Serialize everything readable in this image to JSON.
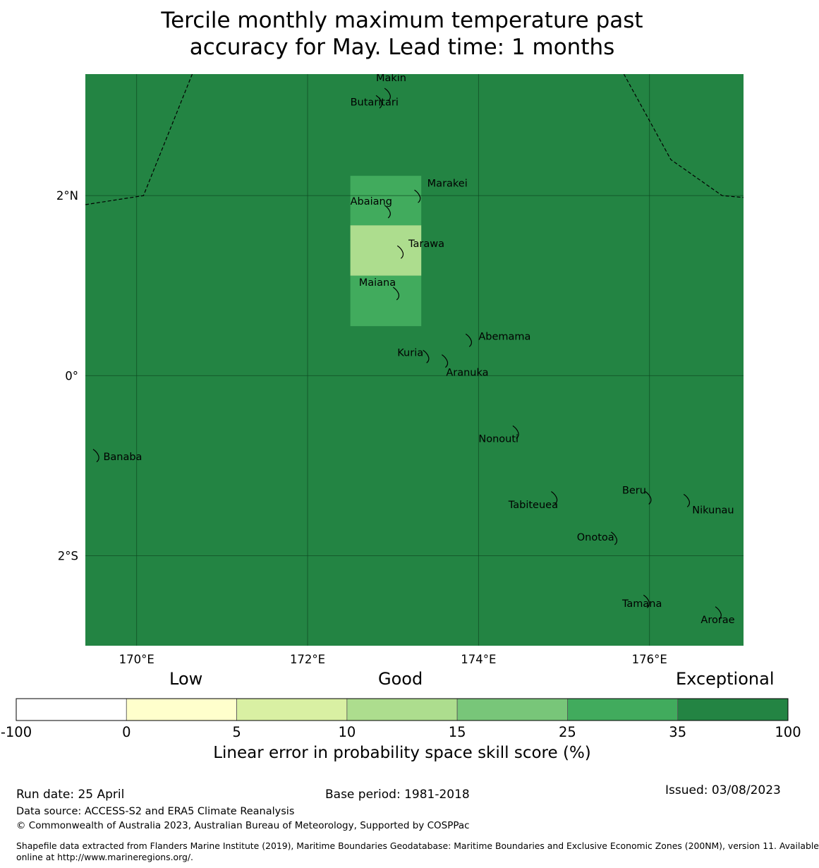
{
  "title_line1": "Tercile monthly maximum temperature past",
  "title_line2": "accuracy for May. Lead time: 1 months",
  "map": {
    "lon_range": [
      169.4,
      177.1
    ],
    "lat_range": [
      -3.0,
      3.35
    ],
    "background_category_color": "#238443",
    "lat_ticks": [
      {
        "lat": 2,
        "label": "2°N"
      },
      {
        "lat": 0,
        "label": "0°"
      },
      {
        "lat": -2,
        "label": "2°S"
      }
    ],
    "lon_ticks": [
      {
        "lon": 170,
        "label": "170°E"
      },
      {
        "lon": 172,
        "label": "172°E"
      },
      {
        "lon": 174,
        "label": "174°E"
      },
      {
        "lon": 176,
        "label": "176°E"
      }
    ],
    "cells": [
      {
        "lon0": 172.5,
        "lon1": 173.33,
        "lat0": 1.67,
        "lat1": 2.22,
        "color": "#41ab5d"
      },
      {
        "lon0": 172.5,
        "lon1": 173.33,
        "lat0": 1.11,
        "lat1": 1.67,
        "color": "#addd8e"
      },
      {
        "lon0": 172.5,
        "lon1": 173.33,
        "lat0": 0.55,
        "lat1": 1.11,
        "color": "#41ab5d"
      }
    ],
    "boundary_west": [
      [
        169.4,
        1.9
      ],
      [
        170.08,
        2.0
      ],
      [
        170.65,
        3.35
      ]
    ],
    "boundary_east": [
      [
        175.7,
        3.35
      ],
      [
        176.25,
        2.4
      ],
      [
        176.85,
        2.0
      ],
      [
        177.1,
        1.98
      ]
    ],
    "islands": [
      {
        "name": "Makin",
        "lon": 172.95,
        "lat": 3.13,
        "label_dlon": -0.15,
        "label_dlat": 0.14
      },
      {
        "name": "Butaritari",
        "lon": 172.85,
        "lat": 3.05,
        "label_dlon": -0.35,
        "label_dlat": -0.05
      },
      {
        "name": "Marakei",
        "lon": 173.3,
        "lat": 2.0,
        "label_dlon": 0.1,
        "label_dlat": 0.1
      },
      {
        "name": "Abaiang",
        "lon": 172.95,
        "lat": 1.83,
        "label_dlon": -0.45,
        "label_dlat": 0.07
      },
      {
        "name": "Tarawa",
        "lon": 173.1,
        "lat": 1.38,
        "label_dlon": 0.08,
        "label_dlat": 0.05
      },
      {
        "name": "Maiana",
        "lon": 173.05,
        "lat": 0.92,
        "label_dlon": -0.45,
        "label_dlat": 0.08
      },
      {
        "name": "Abemama",
        "lon": 173.9,
        "lat": 0.4,
        "label_dlon": 0.1,
        "label_dlat": 0.0
      },
      {
        "name": "Kuria",
        "lon": 173.4,
        "lat": 0.22,
        "label_dlon": -0.35,
        "label_dlat": 0.0
      },
      {
        "name": "Aranuka",
        "lon": 173.62,
        "lat": 0.17,
        "label_dlon": -0.0,
        "label_dlat": -0.17
      },
      {
        "name": "Nonouti",
        "lon": 174.45,
        "lat": -0.62,
        "label_dlon": -0.45,
        "label_dlat": -0.12
      },
      {
        "name": "Banaba",
        "lon": 169.54,
        "lat": -0.88,
        "label_dlon": 0.07,
        "label_dlat": -0.06
      },
      {
        "name": "Tabiteuea",
        "lon": 174.9,
        "lat": -1.35,
        "label_dlon": -0.55,
        "label_dlat": -0.12
      },
      {
        "name": "Beru",
        "lon": 176.0,
        "lat": -1.35,
        "label_dlon": -0.32,
        "label_dlat": 0.04
      },
      {
        "name": "Nikunau",
        "lon": 176.45,
        "lat": -1.38,
        "label_dlon": 0.05,
        "label_dlat": -0.15
      },
      {
        "name": "Onotoa",
        "lon": 175.6,
        "lat": -1.8,
        "label_dlon": -0.45,
        "label_dlat": -0.03
      },
      {
        "name": "Tamana",
        "lon": 175.98,
        "lat": -2.5,
        "label_dlon": -0.3,
        "label_dlat": -0.07
      },
      {
        "name": "Arorae",
        "lon": 176.82,
        "lat": -2.63,
        "label_dlon": -0.22,
        "label_dlat": -0.12
      }
    ]
  },
  "colorbar": {
    "headers": [
      "Low",
      "Good",
      "Exceptional"
    ],
    "tick_labels": [
      "-100",
      "0",
      "5",
      "10",
      "15",
      "25",
      "35",
      "100"
    ],
    "colors": [
      "#ffffff",
      "#ffffcc",
      "#d9f0a3",
      "#addd8e",
      "#78c679",
      "#41ab5d",
      "#238443"
    ],
    "label": "Linear error in probability space skill score (%)"
  },
  "footer": {
    "run_date": "Run date: 25 April",
    "base_period": "Base period: 1981-2018",
    "issued": "Issued: 03/08/2023",
    "data_source": "Data source: ACCESS-S2 and ERA5 Climate Reanalysis",
    "copyright": "© Commonwealth of Australia 2023, Australian Bureau of Meteorology, Supported by COSPPac",
    "shapefile_line1": "Shapefile data extracted from Flanders Marine Institute (2019), Maritime Boundaries Geodatabase: Maritime Boundaries and Exclusive Economic Zones (200NM), version 11. Available",
    "shapefile_line2": "online at http://www.marineregions.org/."
  }
}
